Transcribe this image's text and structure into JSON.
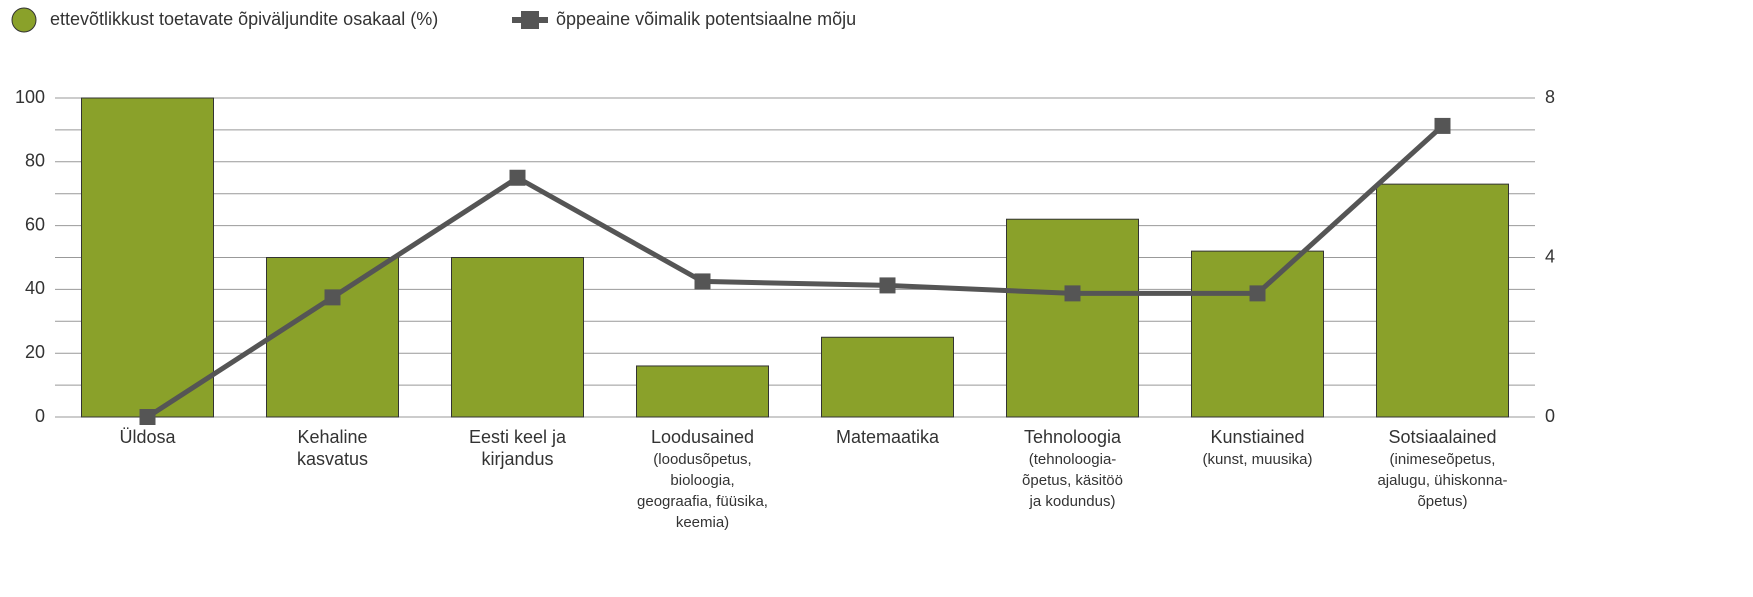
{
  "chart_data": {
    "type": "bar",
    "categories": [
      [
        "Üldosa"
      ],
      [
        "Kehaline",
        "kasvatus"
      ],
      [
        "Eesti keel ja",
        "kirjandus"
      ],
      [
        "Loodusained"
      ],
      [
        "Matemaatika"
      ],
      [
        "Tehnoloogia"
      ],
      [
        "Kunstiained"
      ],
      [
        "Sotsiaalained"
      ]
    ],
    "category_notes": [
      null,
      null,
      null,
      [
        "(loodusõpetus,",
        "bioloogia,",
        "geograafia, füüsika,",
        "keemia)"
      ],
      null,
      [
        "(tehnoloogia-",
        "õpetus, käsitöö",
        "ja kodundus)"
      ],
      [
        "(kunst, muusika)"
      ],
      [
        "(inimeseõpetus,",
        "ajalugu, ühiskonna-",
        "õpetus)"
      ]
    ],
    "series": [
      {
        "name": "ettevõtlikkust toetavate õpiväljundite osakaal (%)",
        "type": "bar",
        "color": "#8aa12a",
        "values": [
          100,
          50,
          50,
          16,
          25,
          62,
          52,
          73
        ]
      },
      {
        "name": "õppeaine võimalik potentsiaalne mõju",
        "type": "line",
        "axis": "y2",
        "color": "#555555",
        "values": [
          0,
          3,
          6,
          3.4,
          3.3,
          3.1,
          3.1,
          7.3
        ]
      }
    ],
    "ylim": [
      0,
      100
    ],
    "yticks": [
      0,
      20,
      40,
      60,
      80,
      100
    ],
    "ygrid": [
      0,
      10,
      20,
      30,
      40,
      50,
      60,
      70,
      80,
      90,
      100
    ],
    "y2lim": [
      0,
      8
    ],
    "y2ticks": [
      0,
      4,
      8
    ],
    "grid": true,
    "legend": "top-left"
  }
}
